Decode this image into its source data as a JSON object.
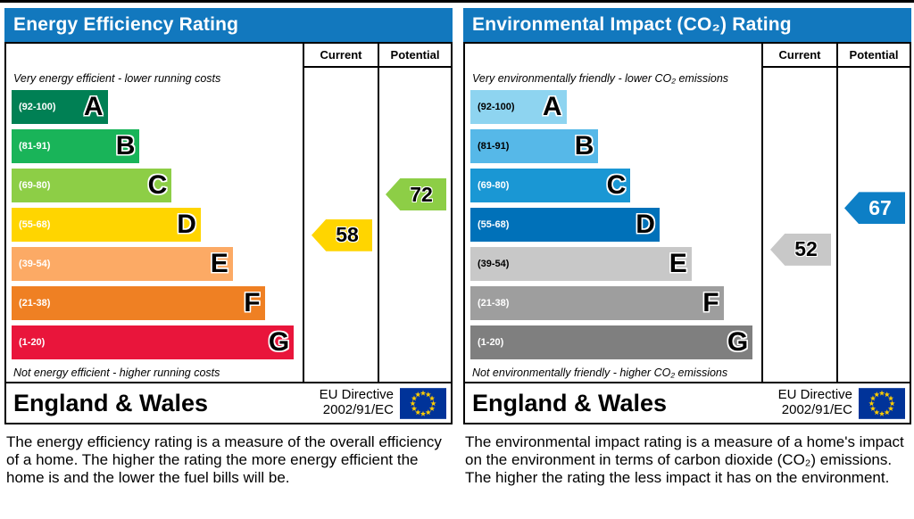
{
  "colors": {
    "header_blue": "#1278be",
    "flag_blue": "#003399",
    "flag_star": "#ffcc00"
  },
  "panels": [
    {
      "title": "Energy Efficiency Rating",
      "columns": [
        "Current",
        "Potential"
      ],
      "top_note": "Very energy efficient - lower running costs",
      "bottom_note": "Not energy efficient - higher running costs",
      "bands": [
        {
          "letter": "A",
          "range": "(92-100)",
          "low": 92,
          "high": 100,
          "color": "#008054",
          "range_color": "#ffffff",
          "width_pct": 33
        },
        {
          "letter": "B",
          "range": "(81-91)",
          "low": 81,
          "high": 91,
          "color": "#19b459",
          "range_color": "#ffffff",
          "width_pct": 44
        },
        {
          "letter": "C",
          "range": "(69-80)",
          "low": 69,
          "high": 80,
          "color": "#8dce46",
          "range_color": "#ffffff",
          "width_pct": 55
        },
        {
          "letter": "D",
          "range": "(55-68)",
          "low": 55,
          "high": 68,
          "color": "#ffd500",
          "range_color": "#ffffff",
          "width_pct": 65
        },
        {
          "letter": "E",
          "range": "(39-54)",
          "low": 39,
          "high": 54,
          "color": "#fcaa65",
          "range_color": "#ffffff",
          "width_pct": 76
        },
        {
          "letter": "F",
          "range": "(21-38)",
          "low": 21,
          "high": 38,
          "color": "#ef8023",
          "range_color": "#ffffff",
          "width_pct": 87
        },
        {
          "letter": "G",
          "range": "(1-20)",
          "low": 1,
          "high": 20,
          "color": "#e9153b",
          "range_color": "#ffffff",
          "width_pct": 97
        }
      ],
      "current": {
        "value": 58,
        "color": "#ffd500",
        "text_color": "#000000"
      },
      "potential": {
        "value": 72,
        "color": "#8dce46",
        "text_color": "#000000"
      },
      "footer": {
        "region": "England & Wales",
        "directive_line1": "EU Directive",
        "directive_line2": "2002/91/EC"
      },
      "description": "The energy efficiency rating is a measure of the overall efficiency of a home. The higher the rating the more energy efficient the home is and the lower the fuel bills will be."
    },
    {
      "title": "Environmental Impact (CO₂) Rating",
      "columns": [
        "Current",
        "Potential"
      ],
      "top_note": "Very environmentally friendly - lower CO₂ emissions",
      "bottom_note": "Not environmentally friendly - higher CO₂ emissions",
      "bands": [
        {
          "letter": "A",
          "range": "(92-100)",
          "low": 92,
          "high": 100,
          "color": "#8ed4f0",
          "range_color": "#000000",
          "width_pct": 33
        },
        {
          "letter": "B",
          "range": "(81-91)",
          "low": 81,
          "high": 91,
          "color": "#56b8e8",
          "range_color": "#000000",
          "width_pct": 44
        },
        {
          "letter": "C",
          "range": "(69-80)",
          "low": 69,
          "high": 80,
          "color": "#1a97d4",
          "range_color": "#ffffff",
          "width_pct": 55
        },
        {
          "letter": "D",
          "range": "(55-68)",
          "low": 55,
          "high": 68,
          "color": "#0071b9",
          "range_color": "#ffffff",
          "width_pct": 65
        },
        {
          "letter": "E",
          "range": "(39-54)",
          "low": 39,
          "high": 54,
          "color": "#c8c8c8",
          "range_color": "#000000",
          "width_pct": 76
        },
        {
          "letter": "F",
          "range": "(21-38)",
          "low": 21,
          "high": 38,
          "color": "#9e9e9e",
          "range_color": "#ffffff",
          "width_pct": 87
        },
        {
          "letter": "G",
          "range": "(1-20)",
          "low": 1,
          "high": 20,
          "color": "#7f7f7f",
          "range_color": "#ffffff",
          "width_pct": 97
        }
      ],
      "current": {
        "value": 52,
        "color": "#c8c8c8",
        "text_color": "#000000"
      },
      "potential": {
        "value": 67,
        "color": "#0d7fc6",
        "text_color": "#ffffff"
      },
      "footer": {
        "region": "England & Wales",
        "directive_line1": "EU Directive",
        "directive_line2": "2002/91/EC"
      },
      "description": "The environmental impact rating is a measure of a home's impact on the environment in terms of carbon dioxide (CO₂) emissions. The higher the rating the less impact it has on the environment."
    }
  ],
  "chart_data": [
    {
      "type": "bar",
      "title": "Energy Efficiency Rating",
      "categories": [
        "A",
        "B",
        "C",
        "D",
        "E",
        "F",
        "G"
      ],
      "band_ranges": [
        "92-100",
        "81-91",
        "69-80",
        "55-68",
        "39-54",
        "21-38",
        "1-20"
      ],
      "series": [
        {
          "name": "Current",
          "value": 58,
          "band": "D"
        },
        {
          "name": "Potential",
          "value": 72,
          "band": "C"
        }
      ],
      "region": "England & Wales",
      "directive": "EU Directive 2002/91/EC",
      "scale": [
        1,
        100
      ]
    },
    {
      "type": "bar",
      "title": "Environmental Impact (CO₂) Rating",
      "categories": [
        "A",
        "B",
        "C",
        "D",
        "E",
        "F",
        "G"
      ],
      "band_ranges": [
        "92-100",
        "81-91",
        "69-80",
        "55-68",
        "39-54",
        "21-38",
        "1-20"
      ],
      "series": [
        {
          "name": "Current",
          "value": 52,
          "band": "E"
        },
        {
          "name": "Potential",
          "value": 67,
          "band": "D"
        }
      ],
      "region": "England & Wales",
      "directive": "EU Directive 2002/91/EC",
      "scale": [
        1,
        100
      ]
    }
  ]
}
